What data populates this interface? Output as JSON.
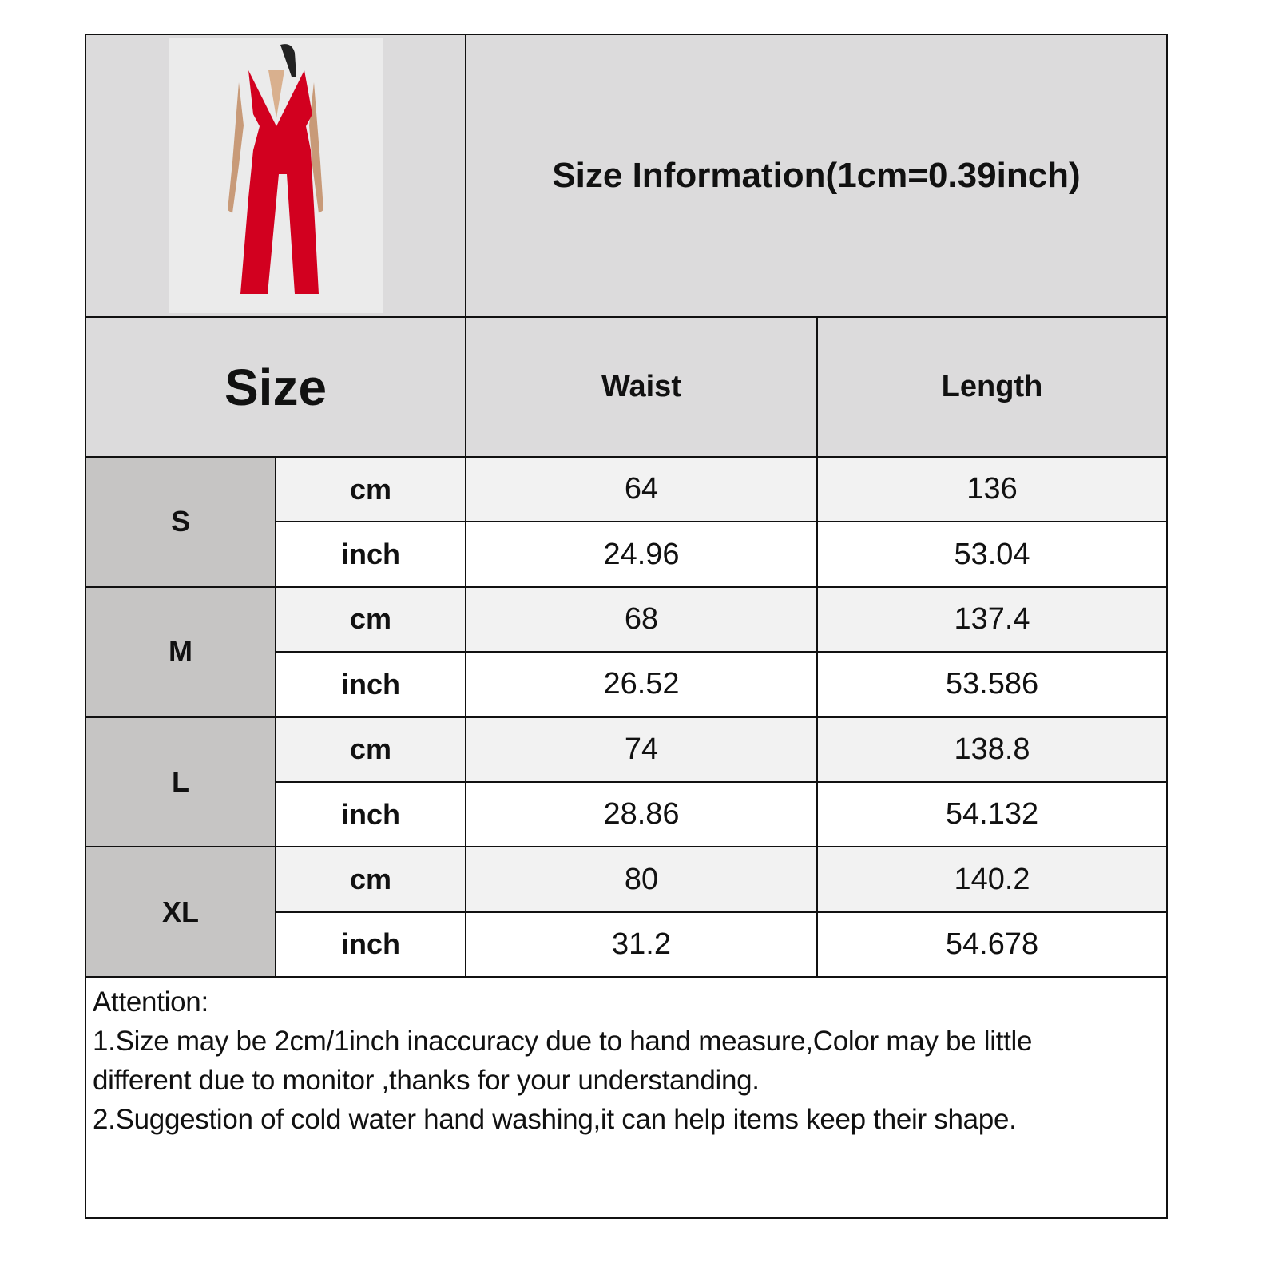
{
  "title": "Size Information(1cm=0.39inch)",
  "product_image": {
    "icon": "red-halter-jumpsuit-photo",
    "color": "#d2001f"
  },
  "headers": {
    "size": "Size",
    "waist": "Waist",
    "length": "Length"
  },
  "rows": [
    {
      "size": "S",
      "cm_label": "cm",
      "inch_label": "inch",
      "waist_cm": "64",
      "length_cm": "136",
      "waist_inch": "24.96",
      "length_inch": "53.04"
    },
    {
      "size": "M",
      "cm_label": "cm",
      "inch_label": "inch",
      "waist_cm": "68",
      "length_cm": "137.4",
      "waist_inch": "26.52",
      "length_inch": "53.586"
    },
    {
      "size": "L",
      "cm_label": "cm",
      "inch_label": "inch",
      "waist_cm": "74",
      "length_cm": "138.8",
      "waist_inch": "28.86",
      "length_inch": "54.132"
    },
    {
      "size": "XL",
      "cm_label": "cm",
      "inch_label": "inch",
      "waist_cm": "80",
      "length_cm": "140.2",
      "waist_inch": "31.2",
      "length_inch": "54.678"
    }
  ],
  "notes": {
    "heading": "Attention:",
    "line1": "1.Size may be 2cm/1inch inaccuracy due to hand measure,Color may be little",
    "line2": "different due to monitor ,thanks for your understanding.",
    "line3": "2.Suggestion of cold water hand washing,it can help items keep their shape."
  }
}
